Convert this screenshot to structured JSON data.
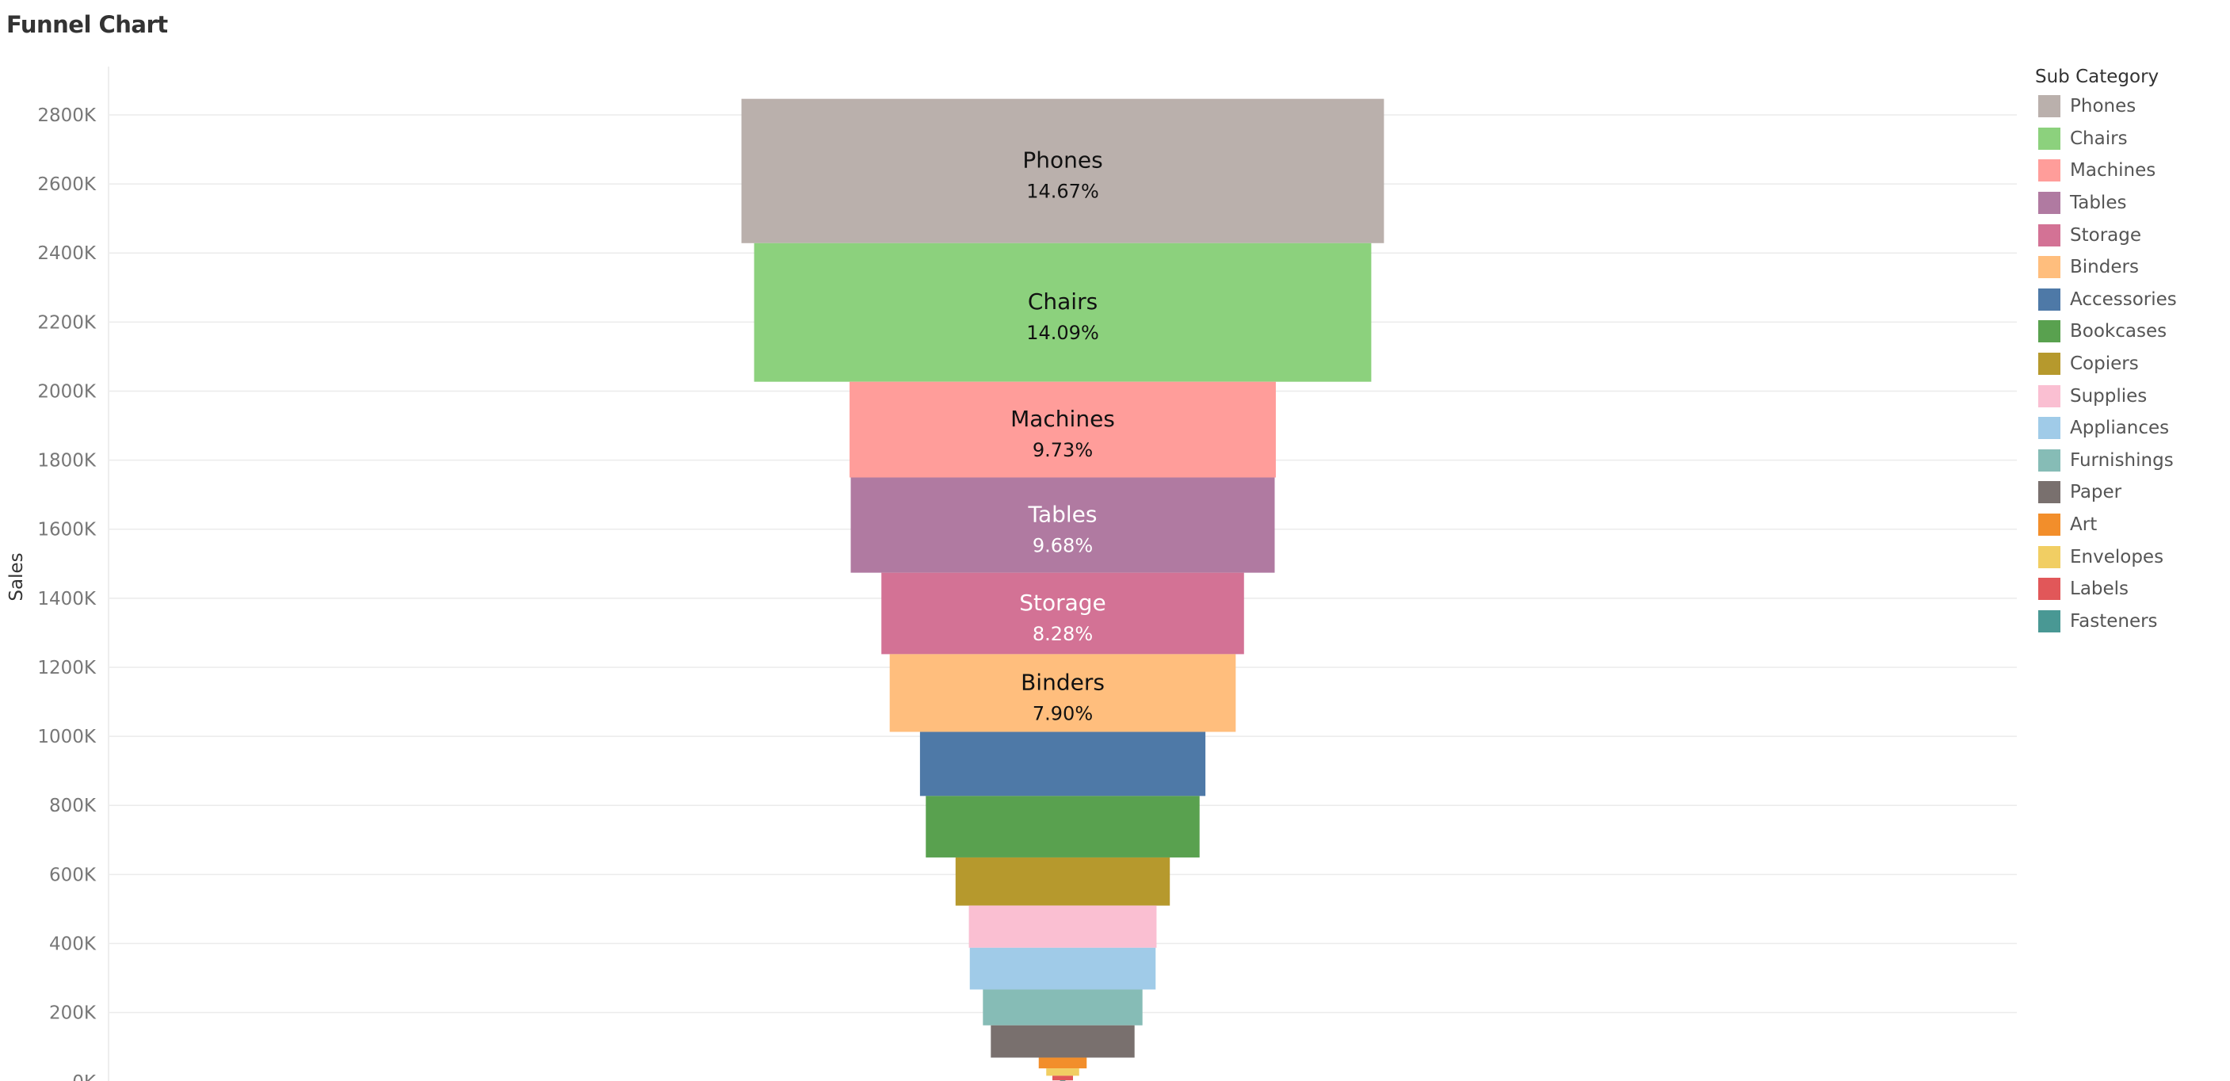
{
  "title": "Funnel Chart",
  "chart_data": {
    "type": "funnel",
    "title": "Funnel Chart",
    "ylabel": "Sales",
    "ylim": [
      -35000,
      2940000
    ],
    "yticks": [
      0,
      200000,
      400000,
      600000,
      800000,
      1000000,
      1200000,
      1400000,
      1600000,
      1800000,
      2000000,
      2200000,
      2400000,
      2600000,
      2800000
    ],
    "ytick_labels": [
      "0K",
      "200K",
      "400K",
      "600K",
      "800K",
      "1000K",
      "1200K",
      "1400K",
      "1600K",
      "1800K",
      "2000K",
      "2200K",
      "2400K",
      "2600K",
      "2800K"
    ],
    "grid": true,
    "legend_title": "Sub Category",
    "legend_position": "right",
    "series": [
      {
        "name": "Phones",
        "value": 418000,
        "percent_label": "14.67%",
        "color": "#BAB0AC",
        "label_color": "#111111"
      },
      {
        "name": "Chairs",
        "value": 401500,
        "percent_label": "14.09%",
        "color": "#8CD17D",
        "label_color": "#111111"
      },
      {
        "name": "Machines",
        "value": 277300,
        "percent_label": "9.73%",
        "color": "#FF9D9A",
        "label_color": "#111111"
      },
      {
        "name": "Tables",
        "value": 275800,
        "percent_label": "9.68%",
        "color": "#B07AA1",
        "label_color": "#ffffff"
      },
      {
        "name": "Storage",
        "value": 235900,
        "percent_label": "8.28%",
        "color": "#D37295",
        "label_color": "#ffffff"
      },
      {
        "name": "Binders",
        "value": 225100,
        "percent_label": "7.90%",
        "color": "#FFBE7D",
        "label_color": "#111111"
      },
      {
        "name": "Accessories",
        "value": 185700,
        "color": "#4E79A7"
      },
      {
        "name": "Bookcases",
        "value": 178100,
        "color": "#59A14F"
      },
      {
        "name": "Copiers",
        "value": 139400,
        "color": "#B6992D"
      },
      {
        "name": "Supplies",
        "value": 122100,
        "color": "#FABFD2"
      },
      {
        "name": "Appliances",
        "value": 120900,
        "color": "#A0CBE8"
      },
      {
        "name": "Furnishings",
        "value": 103800,
        "color": "#86BCB6"
      },
      {
        "name": "Paper",
        "value": 93500,
        "color": "#79706E"
      },
      {
        "name": "Art",
        "value": 31200,
        "color": "#F28E2B"
      },
      {
        "name": "Envelopes",
        "value": 21400,
        "color": "#F1CE63"
      },
      {
        "name": "Labels",
        "value": 13400,
        "color": "#E15759"
      },
      {
        "name": "Fasteners",
        "value": 3500,
        "color": "#499894"
      }
    ]
  }
}
